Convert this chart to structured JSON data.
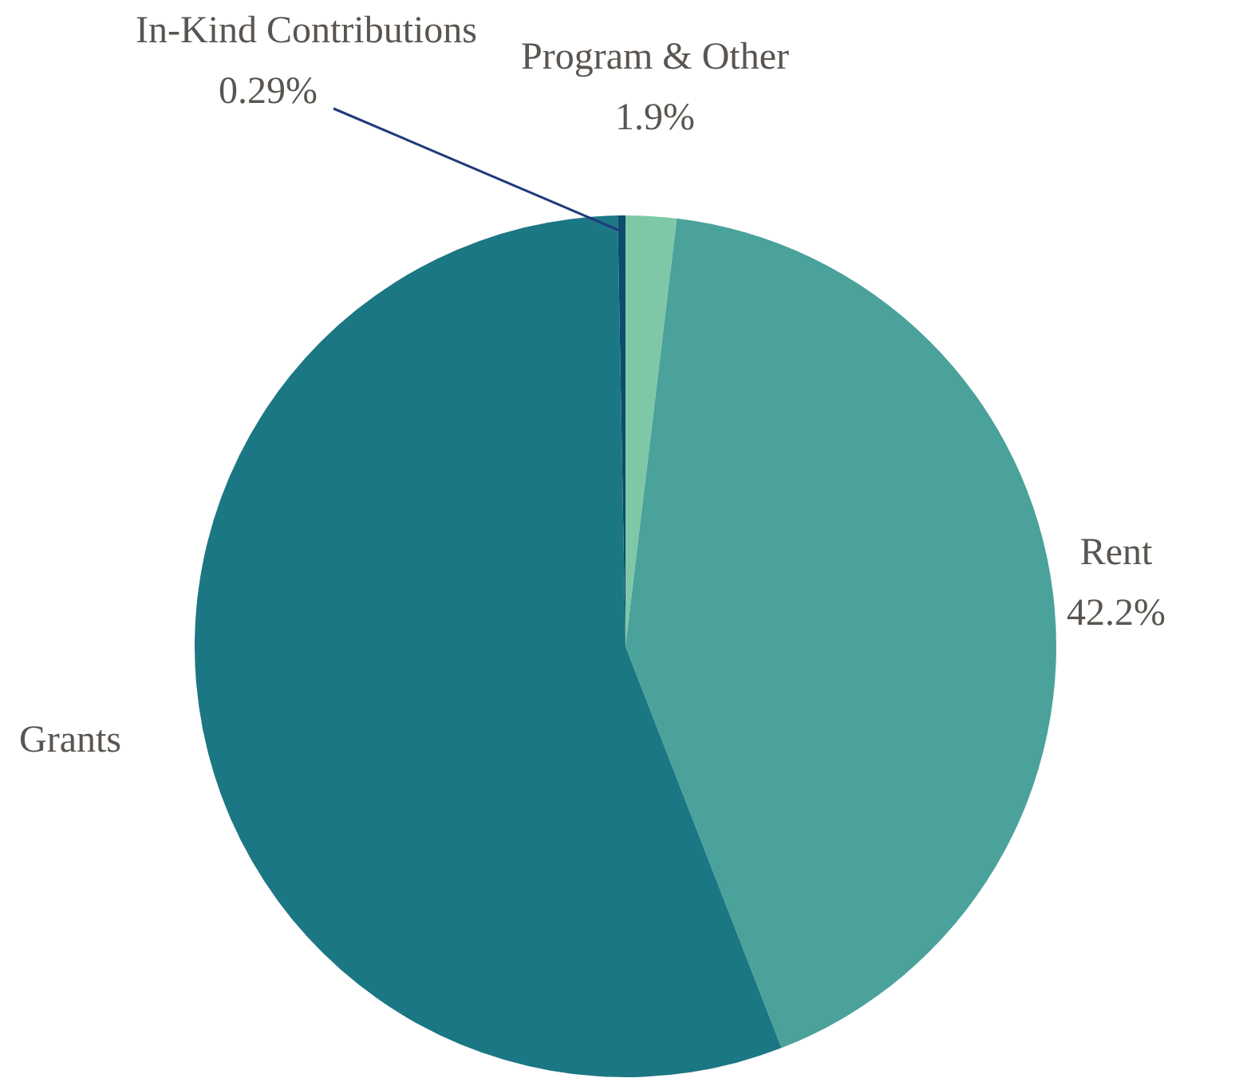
{
  "chart_data": {
    "type": "pie",
    "categories": [
      "Program & Other",
      "Rent",
      "Grants",
      "In-Kind Contributions"
    ],
    "values": [
      1.9,
      42.2,
      55.61,
      0.29
    ],
    "colors": [
      "#7ec8a8",
      "#4aa29b",
      "#1c7784",
      "#0b4d6a"
    ],
    "value_labels": [
      "1.9%",
      "42.2%",
      null,
      "0.29%"
    ],
    "legend": false
  }
}
